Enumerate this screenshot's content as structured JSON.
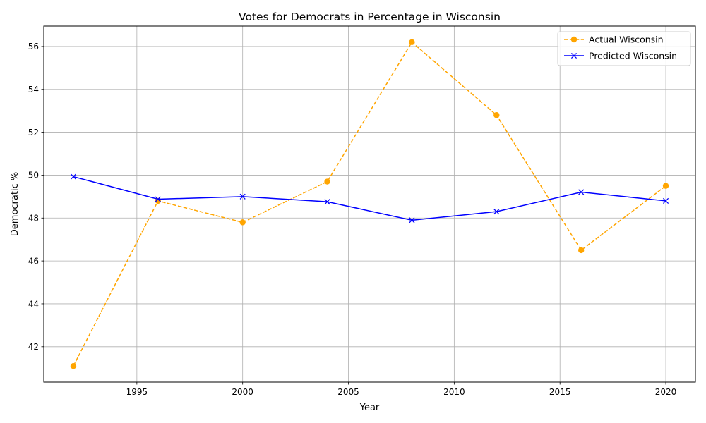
{
  "chart_data": {
    "type": "line",
    "title": "Votes for Democrats in Percentage in Wisconsin",
    "xlabel": "Year",
    "ylabel": "Democratic %",
    "x": [
      1992,
      1996,
      2000,
      2004,
      2008,
      2012,
      2016,
      2020
    ],
    "xlim": [
      1990.6,
      2021.4
    ],
    "ylim": [
      40.35,
      56.95
    ],
    "xticks": [
      1995,
      2000,
      2005,
      2010,
      2015,
      2020
    ],
    "yticks": [
      42,
      44,
      46,
      48,
      50,
      52,
      54,
      56
    ],
    "grid": true,
    "legend_position": "top-right",
    "series": [
      {
        "name": "Actual Wisconsin",
        "values": [
          41.1,
          48.8,
          47.8,
          49.7,
          56.2,
          52.8,
          46.5,
          49.5
        ],
        "color": "#ffa500",
        "line_style": "dashed",
        "marker": "circle"
      },
      {
        "name": "Predicted Wisconsin",
        "values": [
          49.93,
          48.88,
          49.0,
          48.76,
          47.9,
          48.3,
          49.21,
          48.8
        ],
        "color": "#0000ff",
        "line_style": "solid",
        "marker": "x"
      }
    ]
  }
}
